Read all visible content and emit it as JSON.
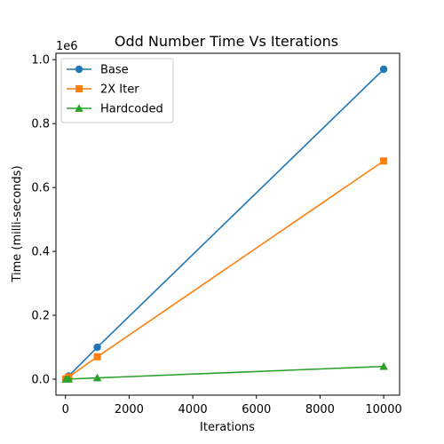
{
  "chart_data": {
    "type": "line",
    "title": "Odd Number Time Vs Iterations",
    "xlabel": "Iterations",
    "ylabel": "Time (milli-seconds)",
    "y_scale_label": "1e6",
    "xlim": [
      -300,
      10500
    ],
    "ylim": [
      -50000,
      1020000
    ],
    "x_ticks": [
      0,
      2000,
      4000,
      6000,
      8000,
      10000
    ],
    "x_tick_labels": [
      "0",
      "2000",
      "4000",
      "6000",
      "8000",
      "10000"
    ],
    "y_ticks": [
      0,
      200000,
      400000,
      600000,
      800000,
      1000000
    ],
    "y_tick_labels": [
      "0.0",
      "0.2",
      "0.4",
      "0.6",
      "0.8",
      "1.0"
    ],
    "grid": false,
    "legend_position": "top-left",
    "series": [
      {
        "name": "Base",
        "color": "#1f77b4",
        "marker": "circle",
        "x": [
          10,
          100,
          1000,
          10000
        ],
        "y": [
          1000,
          10000,
          100000,
          970000
        ]
      },
      {
        "name": "2X Iter",
        "color": "#ff7f0e",
        "marker": "square",
        "x": [
          10,
          100,
          1000,
          10000
        ],
        "y": [
          700,
          7000,
          70000,
          683000
        ]
      },
      {
        "name": "Hardcoded",
        "color": "#2ca02c",
        "marker": "triangle",
        "x": [
          10,
          100,
          1000,
          10000
        ],
        "y": [
          40,
          400,
          4000,
          40000
        ]
      }
    ]
  }
}
